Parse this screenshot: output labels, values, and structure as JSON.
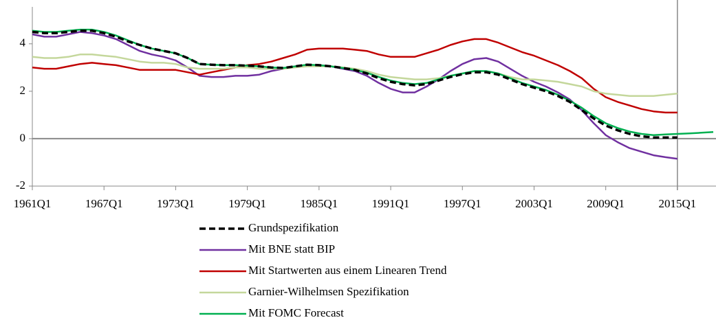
{
  "chart_data": {
    "type": "line",
    "categories": [
      "1961Q1",
      null,
      null,
      null,
      null,
      null,
      "1967Q1",
      null,
      null,
      null,
      null,
      null,
      "1973Q1",
      null,
      null,
      null,
      null,
      null,
      "1979Q1",
      null,
      null,
      null,
      null,
      null,
      "1985Q1",
      null,
      null,
      null,
      null,
      null,
      "1991Q1",
      null,
      null,
      null,
      null,
      null,
      "1997Q1",
      null,
      null,
      null,
      null,
      null,
      "2003Q1",
      null,
      null,
      null,
      null,
      null,
      "2009Q1",
      null,
      null,
      null,
      null,
      null,
      "2015Q1",
      null,
      null,
      null
    ],
    "ylim": [
      -2,
      5.5
    ],
    "yticks": [
      -2,
      0,
      2,
      4
    ],
    "legend": "bottom",
    "series": [
      {
        "name": "Grundspezifikation",
        "color": "#000000",
        "dash": true,
        "values": [
          4.5,
          4.45,
          4.45,
          4.5,
          4.55,
          4.55,
          4.45,
          4.3,
          4.1,
          3.95,
          3.8,
          3.7,
          3.6,
          3.4,
          3.15,
          3.12,
          3.1,
          3.1,
          3.08,
          3.05,
          3.0,
          2.98,
          3.05,
          3.12,
          3.1,
          3.05,
          2.98,
          2.9,
          2.75,
          2.55,
          2.4,
          2.3,
          2.25,
          2.3,
          2.45,
          2.6,
          2.72,
          2.8,
          2.8,
          2.7,
          2.5,
          2.3,
          2.15,
          2.0,
          1.8,
          1.55,
          1.2,
          0.85,
          0.55,
          0.35,
          0.2,
          0.1,
          0.05,
          0.05,
          0.05,
          null,
          null,
          null
        ]
      },
      {
        "name": "Mit BNE statt BIP",
        "color": "#7030a0",
        "values": [
          4.4,
          4.3,
          4.3,
          4.4,
          4.5,
          4.45,
          4.35,
          4.2,
          3.95,
          3.7,
          3.55,
          3.45,
          3.3,
          3.0,
          2.65,
          2.6,
          2.6,
          2.65,
          2.65,
          2.7,
          2.85,
          2.95,
          3.05,
          3.1,
          3.1,
          3.05,
          2.95,
          2.85,
          2.65,
          2.35,
          2.1,
          1.95,
          1.95,
          2.2,
          2.5,
          2.85,
          3.15,
          3.35,
          3.4,
          3.25,
          2.95,
          2.65,
          2.4,
          2.2,
          1.95,
          1.65,
          1.2,
          0.65,
          0.15,
          -0.15,
          -0.4,
          -0.55,
          -0.7,
          -0.78,
          -0.85,
          null,
          null,
          null
        ]
      },
      {
        "name": "Mit Startwerten aus einem Linearen Trend",
        "color": "#c00000",
        "values": [
          3.0,
          2.95,
          2.95,
          3.05,
          3.15,
          3.2,
          3.15,
          3.1,
          3.0,
          2.9,
          2.9,
          2.9,
          2.9,
          2.8,
          2.7,
          2.8,
          2.9,
          3.0,
          3.1,
          3.15,
          3.25,
          3.4,
          3.55,
          3.75,
          3.8,
          3.8,
          3.8,
          3.75,
          3.7,
          3.55,
          3.45,
          3.45,
          3.45,
          3.6,
          3.75,
          3.95,
          4.1,
          4.2,
          4.2,
          4.05,
          3.85,
          3.65,
          3.5,
          3.3,
          3.1,
          2.85,
          2.55,
          2.1,
          1.75,
          1.55,
          1.4,
          1.25,
          1.15,
          1.1,
          1.1,
          null,
          null,
          null
        ]
      },
      {
        "name": "Garnier-Wilhelmsen Spezifikation",
        "color": "#c4d79b",
        "values": [
          3.45,
          3.4,
          3.4,
          3.45,
          3.55,
          3.55,
          3.5,
          3.45,
          3.35,
          3.25,
          3.2,
          3.2,
          3.15,
          3.0,
          2.95,
          2.95,
          2.95,
          3.0,
          3.0,
          2.95,
          2.95,
          2.95,
          3.0,
          3.05,
          3.05,
          3.05,
          3.0,
          2.95,
          2.85,
          2.7,
          2.6,
          2.55,
          2.5,
          2.5,
          2.55,
          2.65,
          2.75,
          2.85,
          2.85,
          2.75,
          2.6,
          2.5,
          2.5,
          2.45,
          2.4,
          2.3,
          2.2,
          2.0,
          1.9,
          1.85,
          1.8,
          1.8,
          1.8,
          1.85,
          1.9,
          null,
          null,
          null
        ]
      },
      {
        "name": "Mit FOMC Forecast",
        "color": "#00b050",
        "values": [
          4.55,
          4.5,
          4.5,
          4.55,
          4.6,
          4.6,
          4.5,
          4.35,
          4.15,
          3.95,
          3.8,
          3.7,
          3.6,
          3.4,
          3.15,
          3.12,
          3.1,
          3.1,
          3.08,
          3.05,
          3.0,
          2.98,
          3.05,
          3.12,
          3.1,
          3.05,
          2.98,
          2.9,
          2.78,
          2.6,
          2.45,
          2.35,
          2.3,
          2.35,
          2.5,
          2.65,
          2.75,
          2.85,
          2.85,
          2.75,
          2.55,
          2.35,
          2.2,
          2.05,
          1.85,
          1.6,
          1.3,
          0.95,
          0.65,
          0.45,
          0.3,
          0.2,
          0.15,
          0.18,
          0.2,
          0.22,
          0.25,
          0.28
        ]
      }
    ]
  }
}
